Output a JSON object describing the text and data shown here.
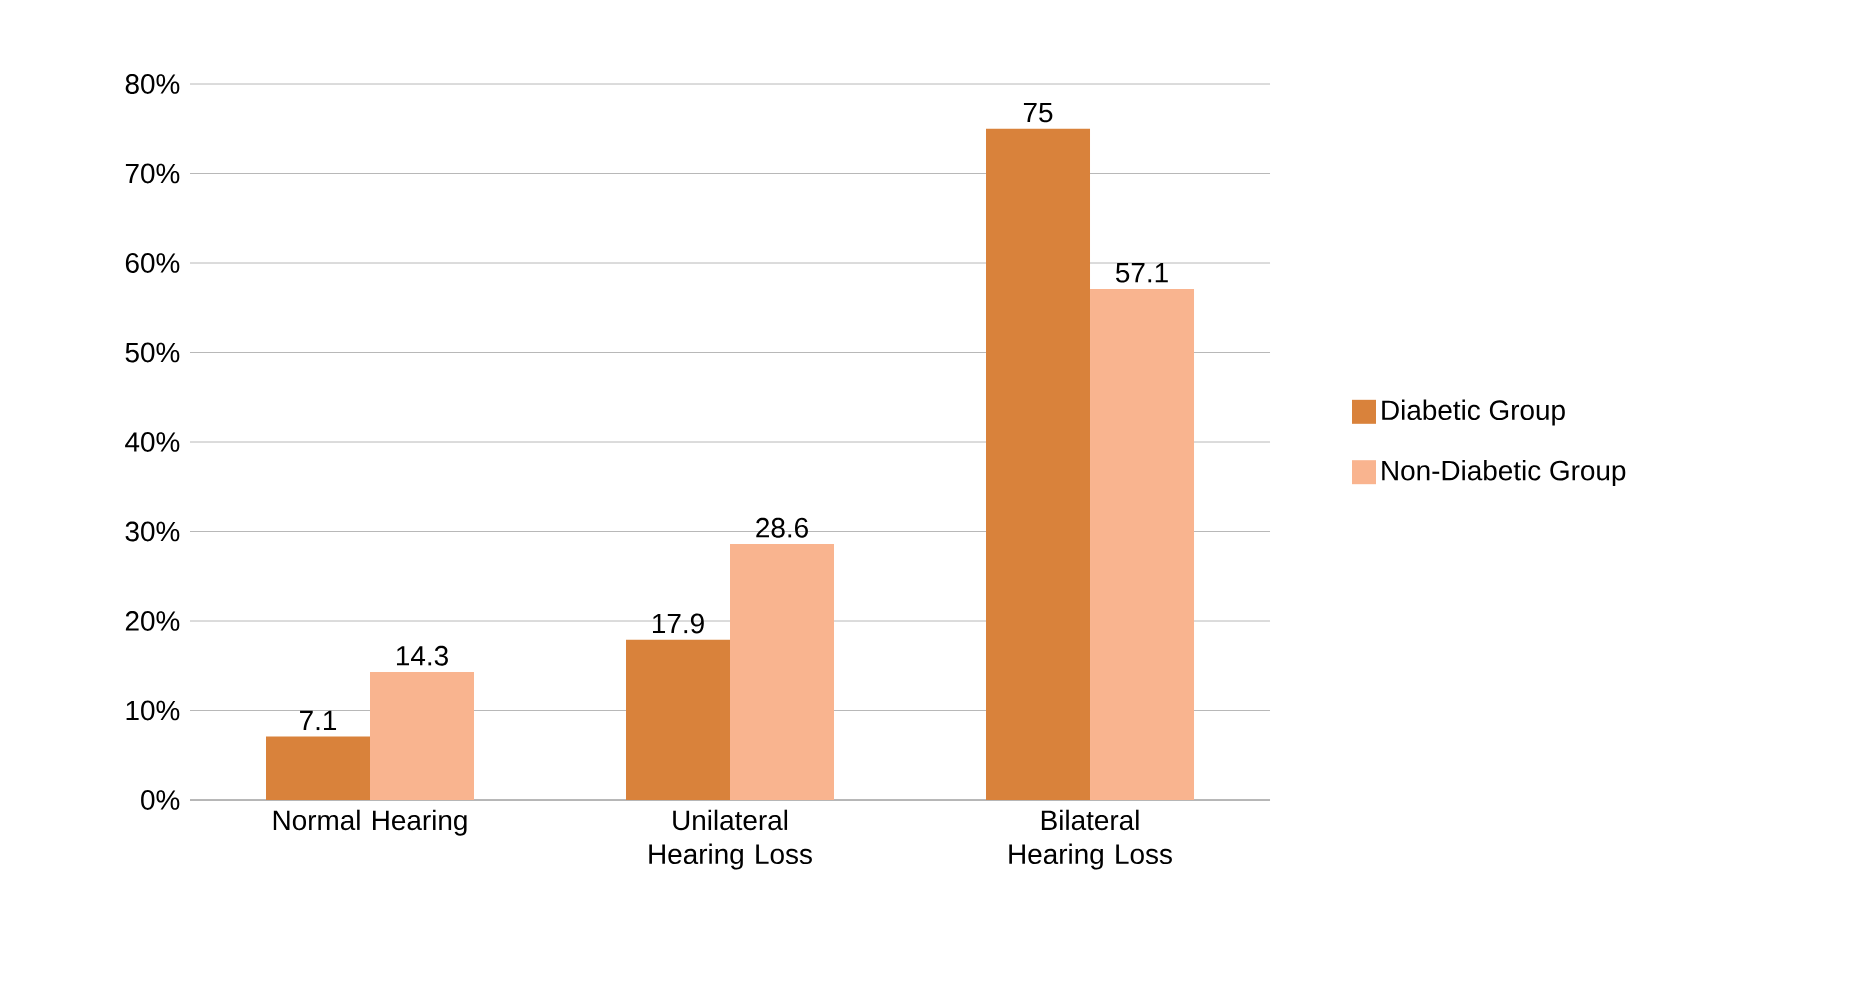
{
  "chart_data": {
    "type": "bar",
    "categories": [
      "Normal Hearing",
      "Unilateral Hearing Loss",
      "Bilateral Hearing Loss"
    ],
    "series": [
      {
        "name": "Diabetic Group",
        "color": "#d9823b",
        "values": [
          7.1,
          17.9,
          75
        ]
      },
      {
        "name": "Non-Diabetic Group",
        "color": "#f9b48f",
        "values": [
          14.3,
          28.6,
          57.1
        ]
      }
    ],
    "ylim": [
      0,
      80
    ],
    "yticks": [
      {
        "value": 0,
        "label": "0%"
      },
      {
        "value": 10,
        "label": "10%"
      },
      {
        "value": 20,
        "label": "20%"
      },
      {
        "value": 30,
        "label": "30%"
      },
      {
        "value": 40,
        "label": "40%"
      },
      {
        "value": 50,
        "label": "50%"
      },
      {
        "value": 60,
        "label": "60%"
      },
      {
        "value": 70,
        "label": "70%"
      },
      {
        "value": 80,
        "label": "80%"
      }
    ],
    "grid": "y",
    "legend": "right",
    "data_labels": true
  }
}
